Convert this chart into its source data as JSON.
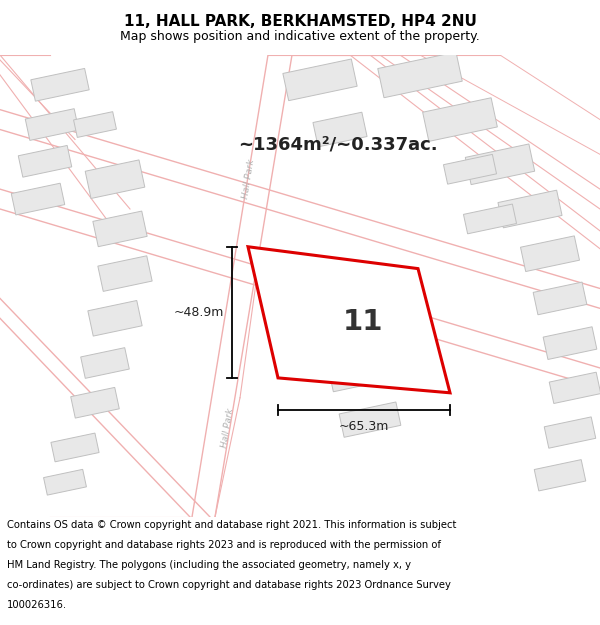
{
  "title": "11, HALL PARK, BERKHAMSTED, HP4 2NU",
  "subtitle": "Map shows position and indicative extent of the property.",
  "area_text": "~1364m²/~0.337ac.",
  "plot_number": "11",
  "dim_width": "~65.3m",
  "dim_height": "~48.9m",
  "footer": "Contains OS data © Crown copyright and database right 2021. This information is subject to Crown copyright and database rights 2023 and is reproduced with the permission of HM Land Registry. The polygons (including the associated geometry, namely x, y co-ordinates) are subject to Crown copyright and database rights 2023 Ordnance Survey 100026316.",
  "bg_color": "#ffffff",
  "map_bg": "#ffffff",
  "road_line_color": "#f0b0b0",
  "road_center_color": "#e8c0c0",
  "building_face": "#e8e8e8",
  "building_edge": "#c0c0c0",
  "plot_edge_color": "#dd0000",
  "plot_fill": "#ffffff",
  "title_fontsize": 11,
  "subtitle_fontsize": 9,
  "footer_fontsize": 7.2,
  "road_label_color": "#b0b0b0"
}
